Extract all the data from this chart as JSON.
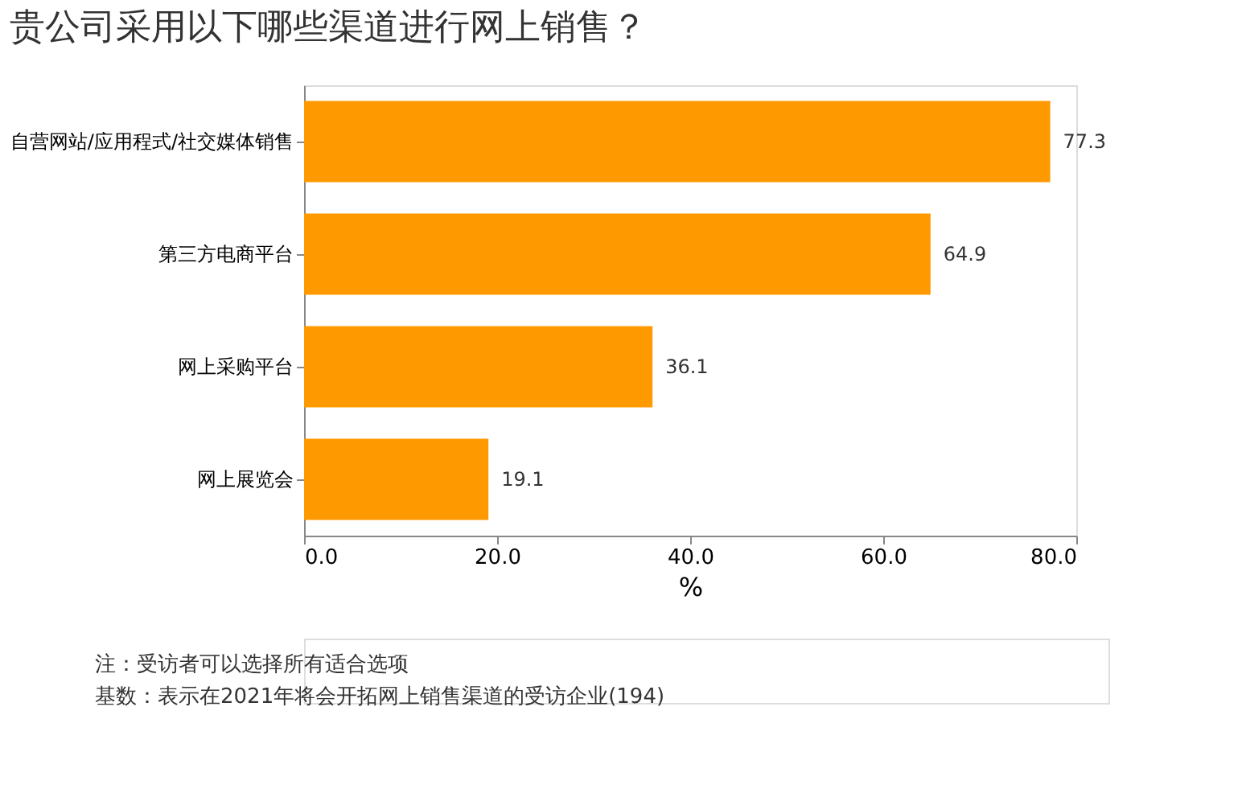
{
  "chart_data": {
    "type": "bar",
    "orientation": "horizontal",
    "title": "贵公司采用以下哪些渠道进行网上销售？",
    "xlabel": "%",
    "categories": [
      "自营网站/应用程式/社交媒体销售",
      "第三方电商平台",
      "网上采购平台",
      "网上展览会"
    ],
    "values": [
      77.3,
      64.9,
      36.1,
      19.1
    ],
    "color": "#ff9900",
    "data_labels": true,
    "grid": false,
    "xlim": [
      0,
      80
    ],
    "xticks": [
      {
        "value": 0,
        "label": "0.0"
      },
      {
        "value": 20,
        "label": "20.0"
      },
      {
        "value": 40,
        "label": "40.0"
      },
      {
        "value": 60,
        "label": "60.0"
      },
      {
        "value": 80,
        "label": "80.0"
      }
    ],
    "annotations": [
      "注：受访者可以选择所有适合选项",
      "基数：表示在2021年将会开拓网上销售渠道的受访企业(194)"
    ]
  }
}
